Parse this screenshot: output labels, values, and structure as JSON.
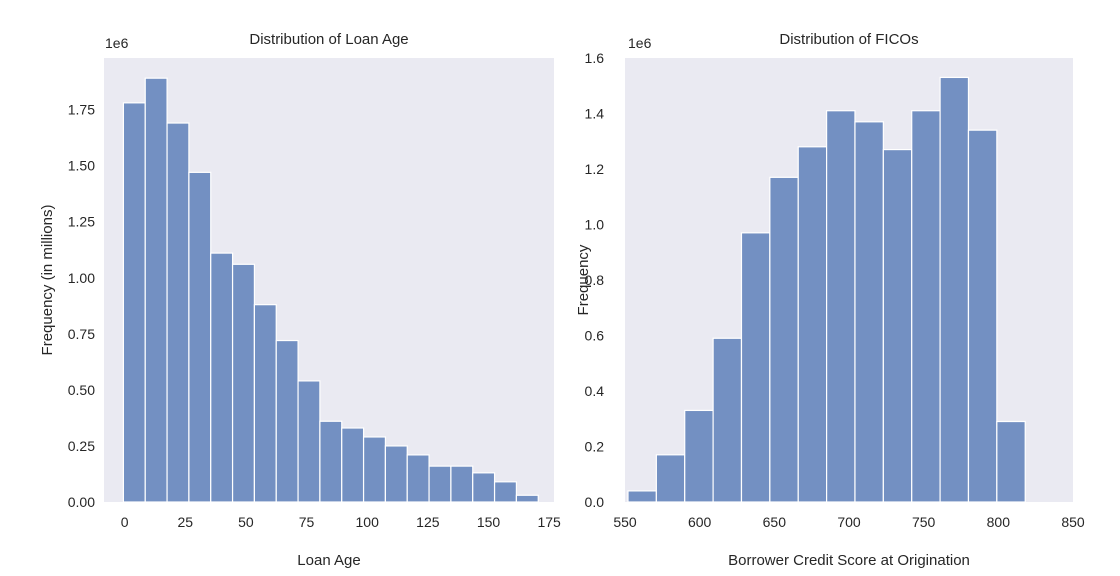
{
  "chart_data": [
    {
      "type": "bar",
      "title": "Distribution of Loan Age",
      "xlabel": "Loan Age",
      "ylabel": "Frequency (in millions)",
      "y_offset_label": "1e6",
      "xlim": [
        -8.5,
        177
      ],
      "ylim": [
        0,
        1.98
      ],
      "grid": false,
      "xticks": [
        0,
        25,
        50,
        75,
        100,
        125,
        150,
        175
      ],
      "xtick_labels": [
        "0",
        "25",
        "50",
        "75",
        "100",
        "125",
        "150",
        "175"
      ],
      "yticks": [
        0,
        0.25,
        0.5,
        0.75,
        1.0,
        1.25,
        1.5,
        1.75
      ],
      "ytick_labels": [
        "0.00",
        "0.25",
        "0.50",
        "0.75",
        "1.00",
        "1.25",
        "1.50",
        "1.75"
      ],
      "bin_edges": [
        -0.5,
        8.5,
        17.5,
        26.5,
        35.5,
        44.5,
        53.5,
        62.5,
        71.5,
        80.5,
        89.5,
        98.5,
        107.5,
        116.5,
        125.5,
        134.5,
        143.5,
        152.5,
        161.5,
        170.5
      ],
      "values": [
        1.78,
        1.89,
        1.69,
        1.47,
        1.11,
        1.06,
        0.88,
        0.72,
        0.54,
        0.36,
        0.33,
        0.29,
        0.25,
        0.21,
        0.16,
        0.16,
        0.13,
        0.09,
        0.03
      ]
    },
    {
      "type": "bar",
      "title": "Distribution of FICOs",
      "xlabel": "Borrower Credit Score at Origination",
      "ylabel": "Frequency",
      "y_offset_label": "1e6",
      "xlim": [
        550,
        850
      ],
      "ylim": [
        0,
        1.6
      ],
      "grid": false,
      "xticks": [
        550,
        600,
        650,
        700,
        750,
        800,
        850
      ],
      "xtick_labels": [
        "550",
        "600",
        "650",
        "700",
        "750",
        "800",
        "850"
      ],
      "yticks": [
        0.0,
        0.2,
        0.4,
        0.6,
        0.8,
        1.0,
        1.2,
        1.4,
        1.6
      ],
      "ytick_labels": [
        "0.0",
        "0.2",
        "0.4",
        "0.6",
        "0.8",
        "1.0",
        "1.2",
        "1.4",
        "1.6"
      ],
      "bin_edges": [
        552,
        571,
        590,
        609,
        628,
        647,
        666,
        685,
        704,
        723,
        742,
        761,
        780,
        799,
        818
      ],
      "values": [
        0.04,
        0.17,
        0.33,
        0.59,
        0.97,
        1.17,
        1.28,
        1.41,
        1.37,
        1.27,
        1.41,
        1.53,
        1.34,
        0.29
      ]
    }
  ],
  "colors": {
    "plot_background": "#eaeaf2",
    "bar_fill": "#7390c2",
    "bar_edge": "#ffffff",
    "text": "#262626"
  }
}
